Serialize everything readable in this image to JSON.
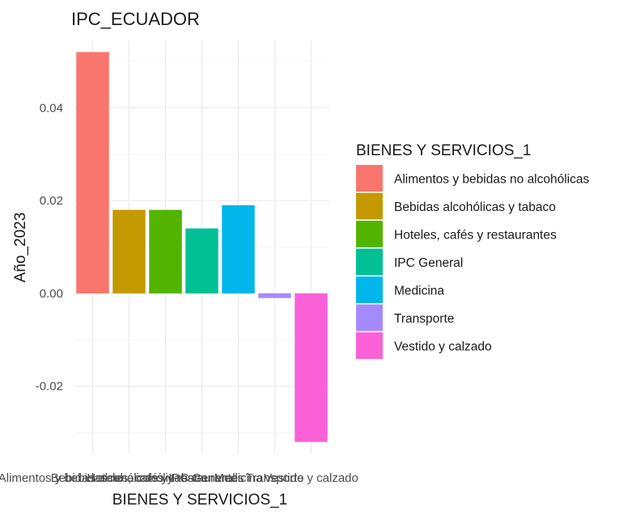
{
  "chart_data": {
    "type": "bar",
    "title": "IPC_ECUADOR",
    "xlabel": "BIENES Y SERVICIOS_1",
    "ylabel": "Año_2023",
    "categories": [
      "Alimentos y bebidas no alcohólicas",
      "Bebidas alcohólicas y tabaco",
      "Hoteles, cafés y restaurantes",
      "IPC General",
      "Medicina",
      "Transporte",
      "Vestido y calzado"
    ],
    "values": [
      0.052,
      0.018,
      0.018,
      0.014,
      0.019,
      -0.001,
      -0.032
    ],
    "colors": [
      "#F8766D",
      "#C49A00",
      "#53B400",
      "#00C094",
      "#00B6EB",
      "#A58AFF",
      "#FB61D7"
    ],
    "ylim": [
      -0.0345,
      0.0545
    ],
    "yticks": [
      -0.02,
      0.0,
      0.02,
      0.04
    ],
    "ytick_labels": [
      "-0.02",
      "0.00",
      "0.02",
      "0.04"
    ],
    "legend": {
      "title": "BIENES Y SERVICIOS_1",
      "position": "right"
    },
    "grid": true
  }
}
